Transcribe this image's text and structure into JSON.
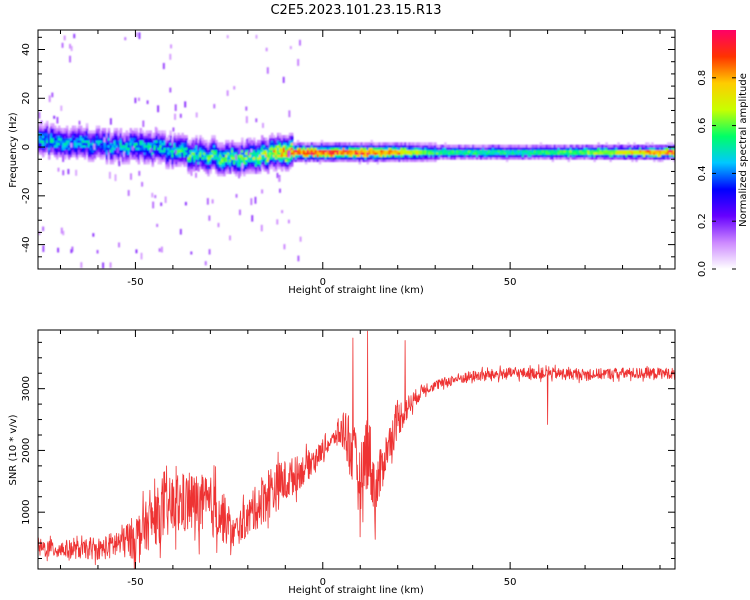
{
  "figure_title": "C2E5.2023.101.23.15.R13",
  "chart_data": [
    {
      "type": "heatmap",
      "title": "C2E5.2023.101.23.15.R13",
      "xlabel": "Height of straight line (km)",
      "ylabel": "Frequency (Hz)",
      "xlim": [
        -76,
        94
      ],
      "ylim": [
        -50,
        48
      ],
      "xticks": [
        -50,
        0,
        50
      ],
      "yticks": [
        -40,
        -20,
        0,
        20,
        40
      ],
      "colorbar": {
        "label": "Normalized spectral amplitude",
        "range": [
          0,
          1
        ],
        "ticks": [
          0.0,
          0.2,
          0.4,
          0.6,
          0.8
        ],
        "colormap": [
          "#ffffff",
          "#cc88ff",
          "#6600ff",
          "#0000ff",
          "#00c8ff",
          "#00ff66",
          "#c8ff00",
          "#ffcc00",
          "#ff3300",
          "#ff0066"
        ]
      },
      "ridge": {
        "description_points_x": [
          -76,
          -60,
          -45,
          -35,
          -25,
          -15,
          -8,
          0,
          10,
          20,
          30,
          50,
          70,
          94
        ],
        "center_freq_hz": [
          3,
          1,
          0,
          -3,
          -4,
          -3,
          -2,
          -2,
          -2,
          -2,
          -2,
          -2,
          -2,
          -2
        ],
        "peak_amplitude": [
          0.5,
          0.45,
          0.5,
          0.55,
          0.6,
          0.7,
          0.9,
          0.9,
          0.85,
          0.8,
          0.55,
          0.5,
          0.6,
          0.85
        ]
      },
      "grid": false
    },
    {
      "type": "line",
      "xlabel": "Height of straight line (km)",
      "ylabel": "SNR (10 * v/v)",
      "xlim": [
        -76,
        94
      ],
      "ylim": [
        80,
        3950
      ],
      "xticks": [
        -50,
        0,
        50
      ],
      "yticks": [
        1000,
        2000,
        3000
      ],
      "color": "#ee3333",
      "envelope": {
        "x": [
          -76,
          -60,
          -50,
          -45,
          -40,
          -35,
          -28,
          -24,
          -20,
          -15,
          -10,
          -5,
          0,
          3,
          6,
          8,
          10,
          12,
          14,
          17,
          20,
          24,
          27,
          30,
          35,
          40,
          50,
          60,
          70,
          80,
          94
        ],
        "baseline": [
          420,
          380,
          600,
          900,
          1100,
          1150,
          1050,
          650,
          900,
          1300,
          1500,
          1700,
          2000,
          2200,
          2350,
          1900,
          1500,
          2100,
          1300,
          2000,
          2500,
          2800,
          3000,
          3050,
          3150,
          3200,
          3250,
          3250,
          3230,
          3250,
          3250
        ],
        "noise_amplitude": [
          150,
          150,
          350,
          450,
          500,
          500,
          500,
          250,
          300,
          450,
          350,
          250,
          150,
          120,
          400,
          600,
          500,
          700,
          500,
          300,
          300,
          150,
          100,
          80,
          90,
          90,
          90,
          90,
          90,
          90,
          90
        ]
      },
      "notable_points": {
        "x": [
          8,
          10,
          12,
          14,
          60,
          22
        ],
        "y": [
          3820,
          600,
          3930,
          560,
          2420,
          3780
        ]
      },
      "grid": false
    }
  ]
}
